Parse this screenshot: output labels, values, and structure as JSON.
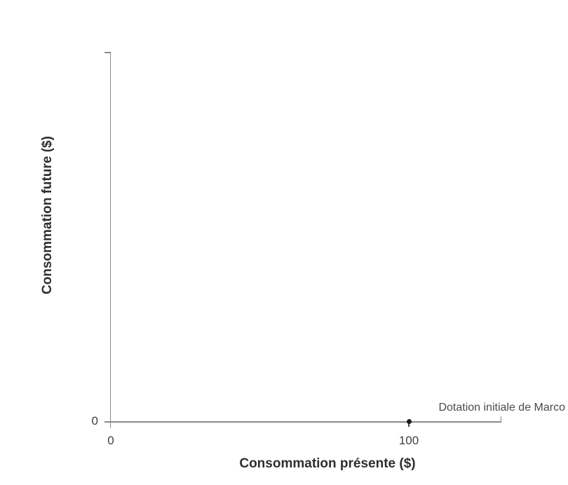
{
  "chart_data": {
    "type": "scatter",
    "title": "",
    "xlabel": "Consommation présente ($)",
    "ylabel": "Consommation future ($)",
    "xlim": [
      0,
      131
    ],
    "ylim": [
      0,
      124
    ],
    "grid": false,
    "legend": "none",
    "x_ticks": [
      {
        "value": 0,
        "label": "0"
      },
      {
        "value": 100,
        "label": "100"
      }
    ],
    "y_ticks": [
      {
        "value": 0,
        "label": "0"
      }
    ],
    "series": [
      {
        "name": "Dotation initiale",
        "type": "point",
        "points": [
          {
            "x": 100,
            "y": 0,
            "label": "Dotation initiale de Marco"
          }
        ]
      }
    ],
    "colors": {
      "axis": "#8a8a8a",
      "point": "#1c1c1c",
      "title_text": "#2e2e2e",
      "tick_text": "#3f3f3f",
      "annotation_text": "#4a4a4a",
      "background": "#ffffff"
    }
  }
}
